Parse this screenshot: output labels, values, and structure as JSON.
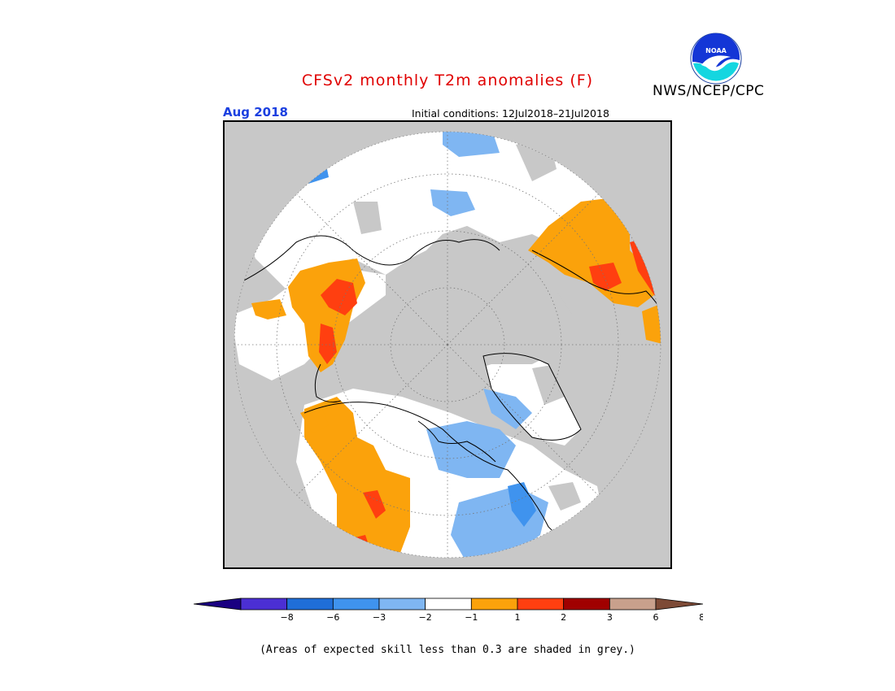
{
  "header": {
    "title": "CFSv2 monthly T2m anomalies (F)",
    "month": "Aug 2018",
    "initial_conditions": "Initial conditions: 12Jul2018–21Jul2018",
    "agency": "NWS/NCEP/CPC"
  },
  "logo": {
    "icon": "noaa-logo-icon",
    "text": "NOAA"
  },
  "map": {
    "projection": "north-polar-stereographic",
    "background_color": "#c8c8c8",
    "ocean_mask_color": "#c8c8c8"
  },
  "colorbar": {
    "colors": [
      "#1a0081",
      "#4b2fd4",
      "#1f6ed8",
      "#3f93ee",
      "#7fb6f2",
      "#ffffff",
      "#fba20b",
      "#ff3f10",
      "#a00000",
      "#c8a08c",
      "#7d4a36"
    ],
    "ticks": [
      "−8",
      "−6",
      "−3",
      "−2",
      "−1",
      "1",
      "2",
      "3",
      "6",
      "8"
    ]
  },
  "footnote": "(Areas of expected skill less than 0.3 are shaded in grey.)"
}
